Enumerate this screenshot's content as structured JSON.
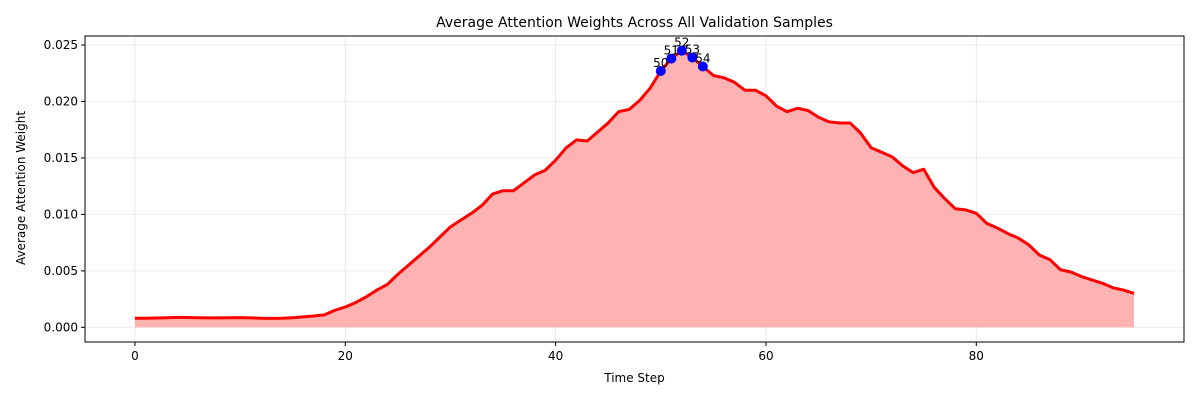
{
  "chart_data": {
    "type": "area",
    "title": "Average Attention Weights Across All Validation Samples",
    "xlabel": "Time Step",
    "ylabel": "Average Attention Weight",
    "xlim": [
      -4.75,
      99.75
    ],
    "ylim": [
      -0.0013,
      0.0258
    ],
    "xticks": [
      0,
      20,
      40,
      60,
      80
    ],
    "xtick_labels": [
      "0",
      "20",
      "40",
      "60",
      "80"
    ],
    "yticks": [
      0.0,
      0.005,
      0.01,
      0.015,
      0.02,
      0.025
    ],
    "ytick_labels": [
      "0.000",
      "0.005",
      "0.010",
      "0.015",
      "0.020",
      "0.025"
    ],
    "grid": true,
    "colors": {
      "line": "#ff0000",
      "fill": "#ffb2b2",
      "highlight": "#0000ff"
    },
    "series": [
      {
        "x": [
          0,
          1,
          2,
          3,
          4,
          5,
          6,
          7,
          8,
          9,
          10,
          11,
          12,
          13,
          14,
          15,
          16,
          17,
          18,
          19,
          20,
          21,
          22,
          23,
          24,
          25,
          26,
          27,
          28,
          29,
          30,
          31,
          32,
          33,
          34,
          35,
          36,
          37,
          38,
          39,
          40,
          41,
          42,
          43,
          44,
          45,
          46,
          47,
          48,
          49,
          50,
          51,
          52,
          53,
          54,
          55,
          56,
          57,
          58,
          59,
          60,
          61,
          62,
          63,
          64,
          65,
          66,
          67,
          68,
          69,
          70,
          71,
          72,
          73,
          74,
          75,
          76,
          77,
          78,
          79,
          80,
          81,
          82,
          83,
          84,
          85,
          86,
          87,
          88,
          89,
          90,
          91,
          92,
          93,
          94,
          95
        ],
        "values": [
          0.0008,
          0.0008,
          0.00082,
          0.00085,
          0.00088,
          0.00087,
          0.00085,
          0.00084,
          0.00084,
          0.00085,
          0.00086,
          0.00084,
          0.0008,
          0.00079,
          0.0008,
          0.00085,
          0.00093,
          0.001,
          0.0011,
          0.0015,
          0.0018,
          0.0022,
          0.0027,
          0.0033,
          0.0038,
          0.0047,
          0.0055,
          0.0063,
          0.0071,
          0.008,
          0.0089,
          0.0095,
          0.0101,
          0.0108,
          0.0118,
          0.0121,
          0.0121,
          0.0128,
          0.0135,
          0.0139,
          0.0148,
          0.0159,
          0.0166,
          0.0165,
          0.0173,
          0.0181,
          0.0191,
          0.0193,
          0.0201,
          0.0212,
          0.0227,
          0.0238,
          0.0245,
          0.0239,
          0.0231,
          0.0223,
          0.0221,
          0.0217,
          0.021,
          0.021,
          0.0205,
          0.0196,
          0.0191,
          0.0194,
          0.0192,
          0.0186,
          0.0182,
          0.0181,
          0.0181,
          0.0172,
          0.0159,
          0.0155,
          0.0151,
          0.0143,
          0.0137,
          0.014,
          0.0124,
          0.0114,
          0.0105,
          0.0104,
          0.0101,
          0.0092,
          0.0088,
          0.0083,
          0.0079,
          0.0073,
          0.0064,
          0.006,
          0.0051,
          0.0049,
          0.0045,
          0.0042,
          0.0039,
          0.0035,
          0.0033,
          0.003
        ]
      }
    ],
    "highlighted_points": [
      {
        "x": 50,
        "value": 0.0227,
        "label": "50"
      },
      {
        "x": 51,
        "value": 0.0238,
        "label": "51"
      },
      {
        "x": 52,
        "value": 0.0245,
        "label": "52"
      },
      {
        "x": 53,
        "value": 0.0239,
        "label": "53"
      },
      {
        "x": 54,
        "value": 0.0231,
        "label": "54"
      }
    ]
  }
}
